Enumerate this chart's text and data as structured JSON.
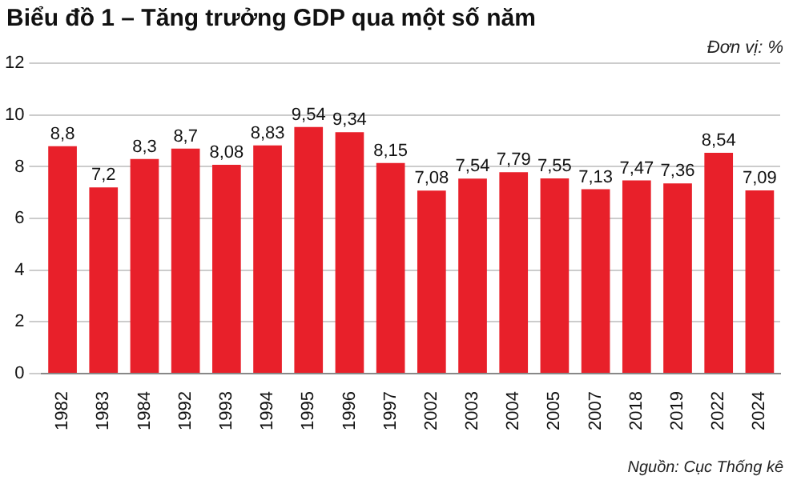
{
  "chart_data": {
    "type": "bar",
    "title": "Biểu đồ 1 – Tăng trưởng GDP qua một số năm",
    "categories": [
      "1982",
      "1983",
      "1984",
      "1992",
      "1993",
      "1994",
      "1995",
      "1996",
      "1997",
      "2002",
      "2003",
      "2004",
      "2005",
      "2007",
      "2018",
      "2019",
      "2022",
      "2024"
    ],
    "values": [
      8.8,
      7.2,
      8.3,
      8.7,
      8.08,
      8.83,
      9.54,
      9.34,
      8.15,
      7.08,
      7.54,
      7.79,
      7.55,
      7.13,
      7.47,
      7.36,
      8.54,
      7.09
    ],
    "value_labels": [
      "8,8",
      "7,2",
      "8,3",
      "8,7",
      "8,08",
      "8,83",
      "9,54",
      "9,34",
      "8,15",
      "7,08",
      "7,54",
      "7,79",
      "7,55",
      "7,13",
      "7,47",
      "7,36",
      "8,54",
      "7,09"
    ],
    "color": "#e8202a",
    "ylim": [
      0,
      12
    ],
    "yticks": [
      0,
      2,
      4,
      6,
      8,
      10,
      12
    ],
    "grid": "y",
    "legend": false,
    "annotations": [
      "Đơn vị: %",
      "Nguồn: Cục Thống kê"
    ]
  }
}
